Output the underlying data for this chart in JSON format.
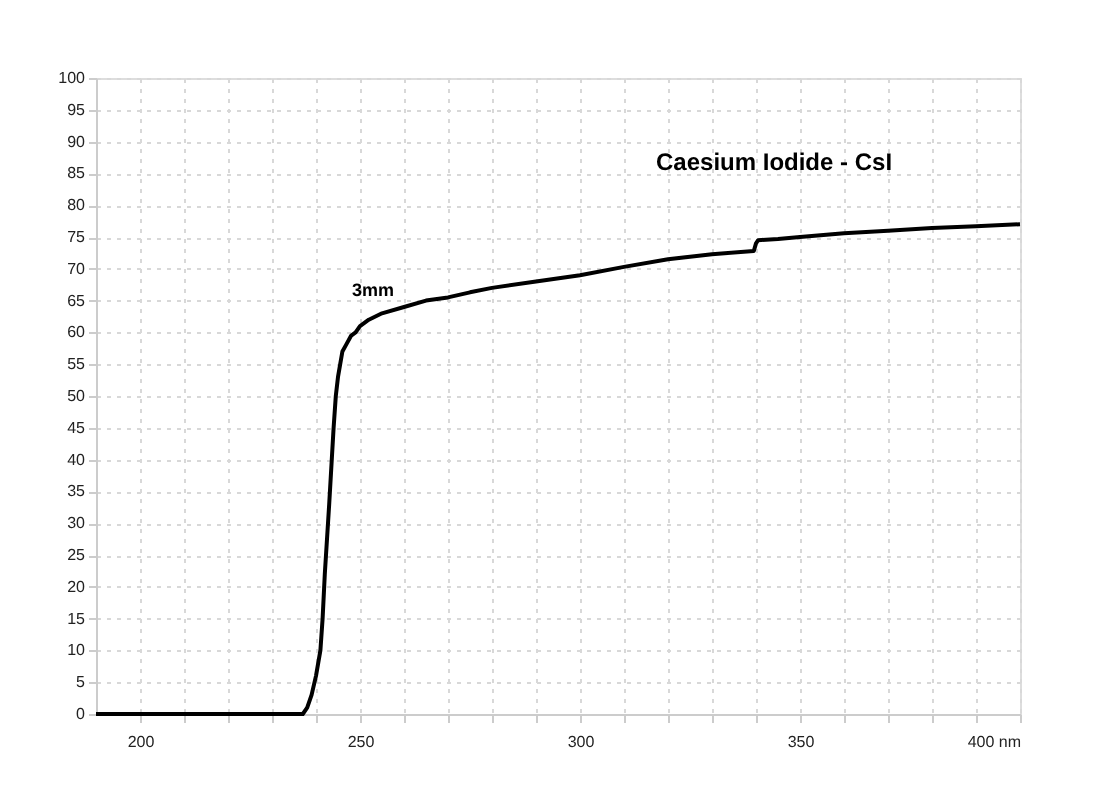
{
  "chart_data": {
    "type": "line",
    "x": [
      190,
      200,
      210,
      220,
      230,
      235,
      237,
      238,
      239,
      240,
      241,
      241.5,
      242,
      243,
      244,
      244.5,
      245,
      245.5,
      246,
      246.8,
      248,
      249,
      250,
      252,
      255,
      260,
      265,
      270,
      275,
      280,
      290,
      300,
      310,
      320,
      330,
      339.5,
      340,
      340.5,
      345,
      350,
      360,
      370,
      380,
      390,
      400
    ],
    "series": [
      {
        "color": "#000000",
        "values": [
          0,
          0,
          0,
          0,
          0,
          0,
          0,
          1,
          3,
          6,
          10,
          15,
          22,
          33,
          45,
          50,
          53,
          55,
          57,
          58,
          59.5,
          60,
          61,
          62,
          63,
          64,
          65,
          65.5,
          66.3,
          67,
          68,
          69,
          70.3,
          71.5,
          72.3,
          72.8,
          74,
          74.5,
          74.7,
          75,
          75.6,
          76,
          76.4,
          76.7,
          77
        ]
      }
    ],
    "xlim": [
      190,
      400
    ],
    "xticks": [
      200,
      {
        "value": 210,
        "label": null
      },
      {
        "value": 220,
        "label": null
      },
      {
        "value": 230,
        "label": null
      },
      {
        "value": 240,
        "label": null
      },
      250,
      {
        "value": 260,
        "label": null
      },
      {
        "value": 270,
        "label": null
      },
      {
        "value": 280,
        "label": null
      },
      {
        "value": 290,
        "label": null
      },
      300,
      {
        "value": 310,
        "label": null
      },
      {
        "value": 320,
        "label": null
      },
      {
        "value": 330,
        "label": null
      },
      {
        "value": 340,
        "label": null
      },
      350,
      {
        "value": 360,
        "label": null
      },
      {
        "value": 370,
        "label": null
      },
      {
        "value": 380,
        "label": null
      },
      {
        "value": 390,
        "label": null
      },
      {
        "value": 400,
        "label": "400 nm"
      }
    ],
    "ylim": [
      0,
      100
    ],
    "yticks": [
      0,
      5,
      10,
      15,
      20,
      25,
      30,
      35,
      40,
      45,
      50,
      55,
      60,
      65,
      70,
      75,
      80,
      85,
      90,
      95,
      100
    ],
    "grid": true,
    "marker": "none",
    "line_style": "solid",
    "annotations": [
      "Caesium Iodide - CsI",
      "3mm"
    ]
  }
}
